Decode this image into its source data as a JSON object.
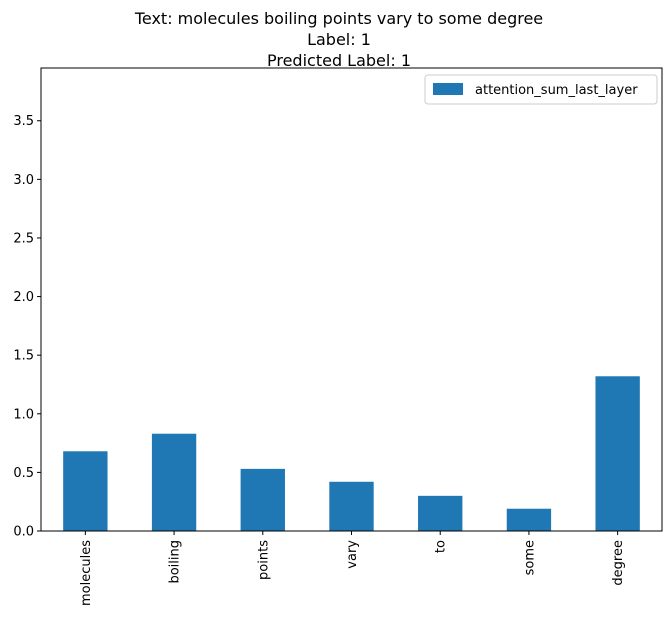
{
  "title_lines": [
    "Text: molecules boiling points vary to some degree",
    "Label: 1",
    "Predicted Label: 1"
  ],
  "colors": {
    "bar": "#1f77b4",
    "axis": "#000000",
    "background": "#ffffff",
    "legend_border": "#cccccc"
  },
  "chart_data": {
    "type": "bar",
    "categories": [
      "molecules",
      "boiling",
      "points",
      "vary",
      "to",
      "some",
      "degree"
    ],
    "series": [
      {
        "name": "attention_sum_last_layer",
        "values": [
          0.68,
          0.83,
          0.53,
          0.42,
          0.3,
          0.19,
          1.32
        ]
      }
    ],
    "ylim": [
      0,
      3.95
    ],
    "yticks": [
      0.0,
      0.5,
      1.0,
      1.5,
      2.0,
      2.5,
      3.0,
      3.5
    ],
    "ytick_labels": [
      "0.0",
      "0.5",
      "1.0",
      "1.5",
      "2.0",
      "2.5",
      "3.0",
      "3.5"
    ],
    "xlabel": "",
    "ylabel": "",
    "grid": false,
    "legend_position": "top-right"
  }
}
